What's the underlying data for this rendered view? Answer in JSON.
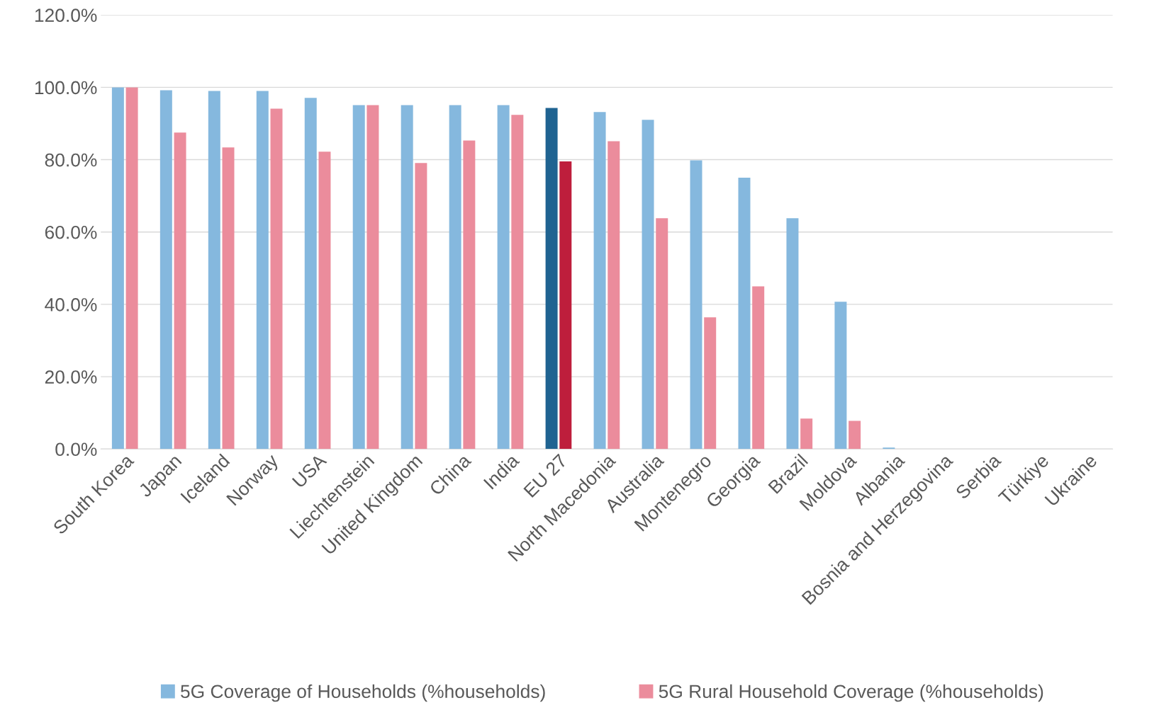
{
  "chart_data": {
    "type": "bar",
    "categories": [
      "South Korea",
      "Japan",
      "Iceland",
      "Norway",
      "USA",
      "Liechtenstein",
      "United Kingdom",
      "China",
      "India",
      "EU 27",
      "North Macedonia",
      "Australia",
      "Montenegro",
      "Georgia",
      "Brazil",
      "Moldova",
      "Albania",
      "Bosnia and Herzegovina",
      "Serbia",
      "Türkiye",
      "Ukraine"
    ],
    "series": [
      {
        "name": "5G Coverage of Households (%households)",
        "color": "#85b8de",
        "colors": [
          "#85b8de",
          "#85b8de",
          "#85b8de",
          "#85b8de",
          "#85b8de",
          "#85b8de",
          "#85b8de",
          "#85b8de",
          "#85b8de",
          "#1f6391",
          "#85b8de",
          "#85b8de",
          "#85b8de",
          "#85b8de",
          "#85b8de",
          "#85b8de",
          "#85b8de",
          "#85b8de",
          "#85b8de",
          "#85b8de",
          "#85b8de"
        ],
        "values": [
          100,
          99.2,
          99,
          99,
          97.1,
          95.1,
          95.1,
          95.1,
          95.1,
          94.3,
          93.2,
          91,
          79.8,
          75,
          63.8,
          40.7,
          0.4,
          0,
          0,
          0,
          0
        ]
      },
      {
        "name": "5G Rural Household Coverage (%households)",
        "color": "#eb8c9c",
        "colors": [
          "#eb8c9c",
          "#eb8c9c",
          "#eb8c9c",
          "#eb8c9c",
          "#eb8c9c",
          "#eb8c9c",
          "#eb8c9c",
          "#eb8c9c",
          "#eb8c9c",
          "#be1e3c",
          "#eb8c9c",
          "#eb8c9c",
          "#eb8c9c",
          "#eb8c9c",
          "#eb8c9c",
          "#eb8c9c",
          "#eb8c9c",
          "#eb8c9c",
          "#eb8c9c",
          "#eb8c9c",
          "#eb8c9c"
        ],
        "values": [
          100,
          87.5,
          83.4,
          94.1,
          82.2,
          95.1,
          79.1,
          85.3,
          92.4,
          79.5,
          85.1,
          63.8,
          36.4,
          45,
          8.4,
          7.8,
          0,
          0,
          0,
          0,
          0
        ]
      }
    ],
    "ylim": [
      0,
      120
    ],
    "yticks": [
      {
        "value": 0,
        "label": "0.0%"
      },
      {
        "value": 20,
        "label": "20.0%"
      },
      {
        "value": 40,
        "label": "40.0%"
      },
      {
        "value": 60,
        "label": "60.0%"
      },
      {
        "value": 80,
        "label": "80.0%"
      },
      {
        "value": 100,
        "label": "100.0%"
      },
      {
        "value": 120,
        "label": "120.0%"
      }
    ],
    "grid": "y",
    "legend": "bottom"
  }
}
